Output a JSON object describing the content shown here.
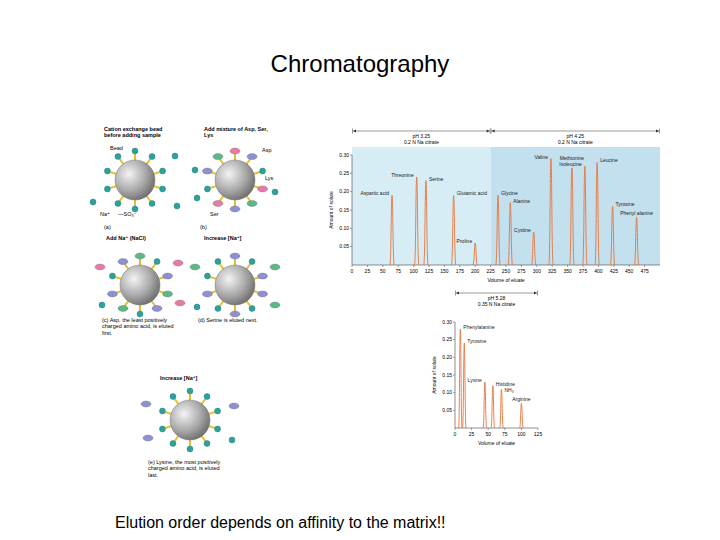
{
  "title": "Chromatography",
  "caption": "Elution order depends on affinity to the matrix!!",
  "diagram": {
    "panels": [
      {
        "letter": "(a)",
        "heading": "Cation exchange bead before adding sample",
        "labels": [
          "Bead",
          "Na⁺",
          "—SO₃⁻"
        ]
      },
      {
        "letter": "(b)",
        "heading": "Add mixture of Asp, Ser, Lys",
        "labels": [
          "Asp",
          "Lys",
          "Ser"
        ]
      },
      {
        "heading": "Add Na⁺ (NaCl)",
        "caption": "(c) Asp, the least positively charged amino acid, is eluted first."
      },
      {
        "heading": "Increase [Na⁺]",
        "caption": "(d) Serine is eluted next."
      },
      {
        "heading": "Increase [Na⁺]",
        "caption": "(e) Lysine, the most positively charged amino acid, is eluted last."
      }
    ]
  },
  "chart_data": [
    {
      "type": "chromatogram",
      "x_label": "Volume of eluate",
      "y_label": "Amount of solute",
      "categories": [
        "Aspartic acid",
        "Threonine",
        "Serine",
        "Glutamic acid",
        "Proline",
        "Glycine",
        "Alanine",
        "Cystine",
        "Valine",
        "Methionine",
        "Isoleucine",
        "Leucine",
        "Tyrosine",
        "Phenyl alanine"
      ],
      "x": [
        65,
        105,
        120,
        165,
        200,
        237,
        257,
        295,
        323,
        357,
        378,
        398,
        423,
        462
      ],
      "values": [
        0.19,
        0.24,
        0.23,
        0.19,
        0.06,
        0.19,
        0.17,
        0.09,
        0.29,
        0.28,
        0.27,
        0.28,
        0.16,
        0.13
      ],
      "color": "#e8743b",
      "xlim": [
        0,
        500
      ],
      "xticks": [
        0,
        25,
        50,
        75,
        100,
        125,
        150,
        175,
        200,
        225,
        250,
        275,
        300,
        325,
        350,
        375,
        400,
        425,
        450,
        475
      ],
      "ylim": [
        0,
        0.3
      ],
      "yticks": [
        0.05,
        {
          "value": 0.1,
          "label": "0.10"
        },
        0.15,
        {
          "value": 0.2,
          "label": "0.20"
        },
        0.25,
        {
          "value": 0.3,
          "label": "0.30"
        }
      ],
      "regions": [
        {
          "label": [
            "pH 3.25",
            "0.2 N Na citrate"
          ],
          "from": 0,
          "to": 225,
          "color": "#d6edf5"
        },
        {
          "label": [
            "pH 4.25",
            "0.2 N Na citrate"
          ],
          "from": 225,
          "to": 500,
          "color": "#c3e0ef"
        }
      ]
    },
    {
      "type": "chromatogram",
      "x_label": "Volume of eluate",
      "y_label": "Amount of solute",
      "categories": [
        "Phenylalanine",
        "Tyrosine",
        "Lysine",
        "Histidine",
        "NH₃",
        "Arginine"
      ],
      "x": [
        8,
        14,
        45,
        57,
        70,
        100
      ],
      "values": [
        0.28,
        0.24,
        0.13,
        0.12,
        0.11,
        0.07
      ],
      "color": "#e8743b",
      "xlim": [
        0,
        125
      ],
      "xticks": [
        0,
        25,
        50,
        75,
        100,
        125
      ],
      "ylim": [
        0,
        0.3
      ],
      "yticks": [
        0.05,
        {
          "value": 0.1,
          "label": "0.10"
        },
        0.15,
        {
          "value": 0.2,
          "label": "0.20"
        },
        0.25,
        {
          "value": 0.3,
          "label": "0.30"
        }
      ],
      "regions": [
        {
          "label": [
            "pH 5.28",
            "0.35 N Na citrate"
          ],
          "from": 0,
          "to": 125
        }
      ]
    }
  ]
}
